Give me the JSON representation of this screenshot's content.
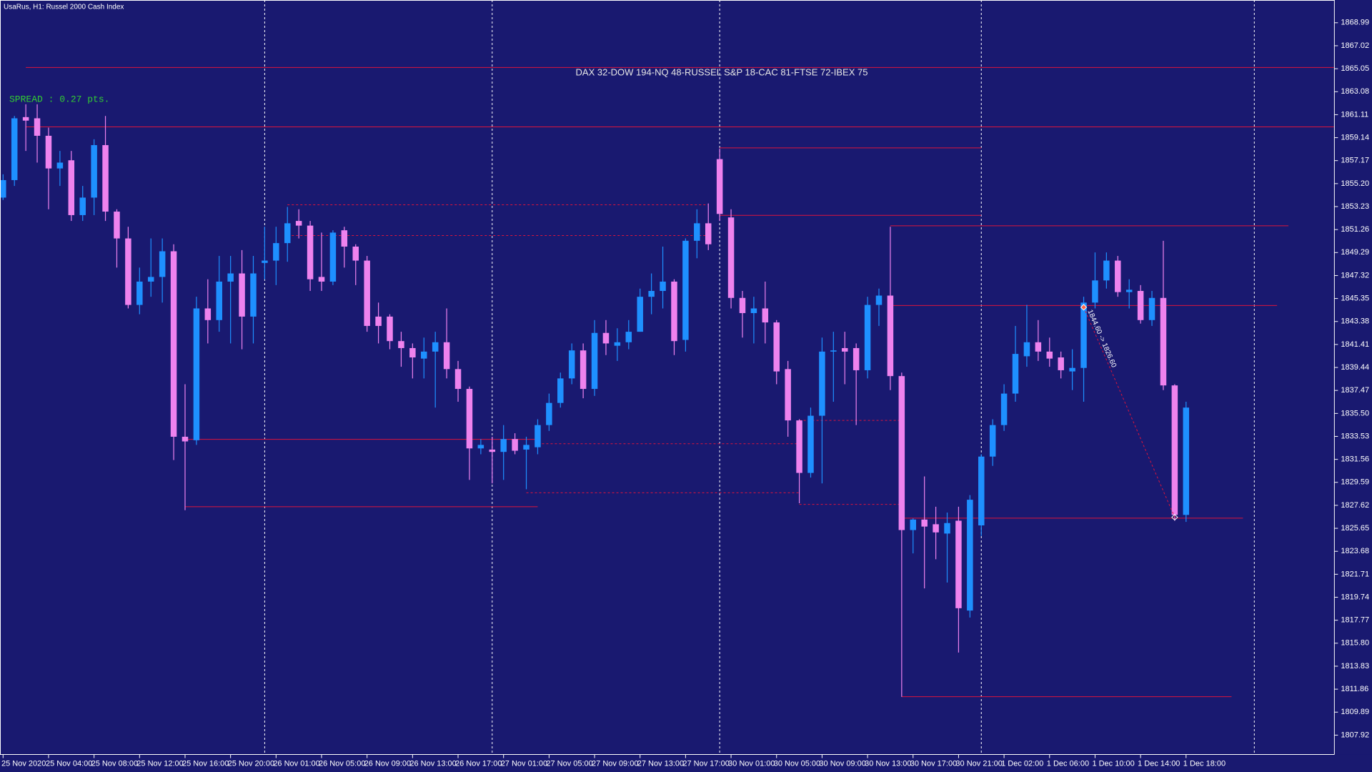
{
  "chart_data": {
    "type": "candlestick",
    "title": "UsaRus, H1:  Russel 2000 Cash Index",
    "header": "DAX 32-DOW 194-NQ 48-RUSSEL S&P 18-CAC 81-FTSE 72-IBEX 75",
    "spread": "SPREAD : 0.27 pts.",
    "up_color": "#1e90ff",
    "down_color": "#ee82ee",
    "level_color": "#dc143c",
    "background": "#191970",
    "categories": [
      "25 Nov 2020",
      null,
      null,
      null,
      "25 Nov 04:00",
      null,
      null,
      null,
      "25 Nov 08:00",
      null,
      null,
      null,
      "25 Nov 12:00",
      null,
      null,
      null,
      "25 Nov 16:00",
      null,
      null,
      null,
      "25 Nov 20:00",
      null,
      null,
      null,
      "26 Nov 01:00",
      null,
      null,
      null,
      "26 Nov 05:00",
      null,
      null,
      null,
      "26 Nov 09:00",
      null,
      null,
      null,
      "26 Nov 13:00",
      null,
      null,
      null,
      "26 Nov 17:00",
      null,
      null,
      null,
      "27 Nov 01:00",
      null,
      null,
      null,
      "27 Nov 05:00",
      null,
      null,
      null,
      "27 Nov 09:00",
      null,
      null,
      null,
      "27 Nov 13:00",
      null,
      null,
      null,
      "27 Nov 17:00",
      null,
      null,
      null,
      "30 Nov 01:00",
      null,
      null,
      null,
      "30 Nov 05:00",
      null,
      null,
      null,
      "30 Nov 09:00",
      null,
      null,
      null,
      "30 Nov 13:00",
      null,
      null,
      null,
      "30 Nov 17:00",
      null,
      null,
      null,
      "30 Nov 21:00",
      null,
      null,
      null,
      "1 Dec 02:00",
      null,
      null,
      null,
      "1 Dec 06:00",
      null,
      null,
      null,
      "1 Dec 10:00",
      null,
      null,
      null,
      "1 Dec 14:00",
      null,
      null,
      null,
      "1 Dec 18:00"
    ],
    "open": [
      1854.0,
      1855.5,
      1860.9,
      1860.8,
      1859.3,
      1856.5,
      1857.2,
      1852.5,
      1854.0,
      1858.5,
      1852.8,
      1850.5,
      1844.8,
      1846.8,
      1847.2,
      1849.4,
      1833.5,
      1833.2,
      1844.5,
      1843.5,
      1846.8,
      1847.5,
      1843.8,
      1848.4,
      1848.6,
      1850.1,
      1852.0,
      1851.6,
      1847.2,
      1846.8,
      1851.2,
      1849.8,
      1848.6,
      1843.8,
      1843.8,
      1841.7,
      1841.1,
      1840.2,
      1840.8,
      1841.6,
      1839.3,
      1837.6,
      1832.5,
      1832.4,
      1832.2,
      1833.3,
      1832.4,
      1832.6,
      1834.5,
      1836.4,
      1838.5,
      1840.9,
      1837.6,
      1842.4,
      1841.3,
      1841.6,
      1842.5,
      1845.5,
      1846.0,
      1846.8,
      1841.8,
      1850.3,
      1851.8,
      1857.3,
      1852.3,
      1845.4,
      1844.1,
      1844.5,
      1843.3,
      1839.3,
      1834.9,
      1830.4,
      1835.3,
      1840.8,
      1841.1,
      1841.1,
      1839.2,
      1844.8,
      1845.6,
      1838.7,
      1825.5,
      1826.4,
      1826.0,
      1825.2,
      1826.3,
      1818.6,
      1825.9,
      1831.8,
      1834.5,
      1837.2,
      1840.4,
      1841.6,
      1840.8,
      1840.3,
      1839.1,
      1839.4,
      1845.0,
      1846.9,
      1848.6,
      1845.9,
      1846.0,
      1843.5,
      1845.4,
      1837.9,
      1826.8
    ],
    "high": [
      1856,
      1861,
      1862,
      1862,
      1860,
      1858,
      1858,
      1855,
      1859,
      1861,
      1853,
      1851.5,
      1848,
      1850.5,
      1850.5,
      1850,
      1838,
      1845.5,
      1847,
      1849,
      1849,
      1849.5,
      1849,
      1851.5,
      1851.5,
      1853.2,
      1853,
      1852,
      1851,
      1851.2,
      1851.5,
      1850,
      1849,
      1845,
      1844,
      1842.5,
      1841.5,
      1842,
      1842.5,
      1844.5,
      1840,
      1837.8,
      1833.3,
      1833.5,
      1834.5,
      1833.8,
      1833.5,
      1835,
      1837.2,
      1839,
      1841.5,
      1841.5,
      1843.5,
      1843.5,
      1842.8,
      1843.5,
      1846.2,
      1847.5,
      1849.8,
      1847,
      1850.5,
      1853,
      1853.5,
      1858.2,
      1853,
      1846,
      1845.5,
      1846.8,
      1843.5,
      1840,
      1835,
      1836,
      1842,
      1842.5,
      1842.5,
      1841.5,
      1845.5,
      1846.2,
      1851.5,
      1839,
      1826.5,
      1830.1,
      1827.5,
      1827,
      1827.5,
      1828.5,
      1832,
      1835,
      1838,
      1843,
      1844.8,
      1843.5,
      1842,
      1840.8,
      1841,
      1845.5,
      1849.3,
      1849.3,
      1849,
      1847,
      1846.5,
      1846,
      1850.3,
      1838,
      1836.5
    ],
    "low": [
      1853.8,
      1855,
      1858,
      1857,
      1853,
      1855,
      1852,
      1852,
      1852.5,
      1852,
      1848,
      1844.5,
      1844,
      1845.5,
      1845,
      1831.5,
      1827.2,
      1832.8,
      1841.5,
      1842.5,
      1841.5,
      1841,
      1841.5,
      1847,
      1846.5,
      1848.5,
      1850.5,
      1846,
      1846,
      1846.5,
      1848,
      1846.5,
      1842.5,
      1841.5,
      1841,
      1839.5,
      1838.5,
      1838.5,
      1836,
      1838.5,
      1836.5,
      1829.8,
      1832,
      1829.5,
      1829.8,
      1832,
      1829,
      1832,
      1834,
      1836,
      1838,
      1836.8,
      1837,
      1840.5,
      1840,
      1841,
      1842.5,
      1844,
      1844.5,
      1840.5,
      1840.8,
      1848.8,
      1849.5,
      1852,
      1844.5,
      1842,
      1841.5,
      1841.5,
      1838,
      1833.5,
      1827.8,
      1830,
      1829.5,
      1836.5,
      1838,
      1834.5,
      1838.5,
      1843,
      1837.5,
      1811.2,
      1823.5,
      1820.5,
      1823,
      1821,
      1815,
      1818,
      1825,
      1831,
      1834,
      1836.5,
      1839.5,
      1840,
      1839.5,
      1838.5,
      1837.5,
      1836.5,
      1844.5,
      1846.2,
      1845.5,
      1844.5,
      1843.2,
      1843,
      1837.5,
      1826.3,
      1826.2
    ],
    "close": [
      1855.5,
      1860.8,
      1860.6,
      1859.3,
      1856.5,
      1857.0,
      1852.5,
      1854.0,
      1858.5,
      1852.8,
      1850.5,
      1844.8,
      1846.8,
      1847.2,
      1849.4,
      1833.5,
      1833.1,
      1844.5,
      1843.5,
      1846.8,
      1847.5,
      1843.8,
      1847.5,
      1848.6,
      1850.1,
      1851.8,
      1851.6,
      1847.0,
      1846.8,
      1851.0,
      1849.8,
      1848.6,
      1843.0,
      1843.0,
      1841.7,
      1841.1,
      1840.3,
      1840.8,
      1841.6,
      1839.3,
      1837.6,
      1832.5,
      1832.8,
      1832.2,
      1833.3,
      1832.3,
      1832.8,
      1834.5,
      1836.4,
      1838.5,
      1840.9,
      1837.6,
      1842.4,
      1841.5,
      1841.6,
      1842.5,
      1845.5,
      1846.0,
      1846.8,
      1841.7,
      1850.3,
      1851.8,
      1850.0,
      1852.6,
      1845.4,
      1844.1,
      1844.5,
      1843.3,
      1839.1,
      1834.9,
      1830.4,
      1835.3,
      1840.8,
      1840.9,
      1840.8,
      1839.2,
      1844.8,
      1845.6,
      1838.7,
      1825.5,
      1826.4,
      1825.8,
      1825.3,
      1826.1,
      1818.8,
      1828.1,
      1831.8,
      1834.5,
      1837.2,
      1840.6,
      1841.6,
      1840.8,
      1840.2,
      1839.2,
      1839.4,
      1845.0,
      1846.9,
      1848.6,
      1845.9,
      1846.1,
      1843.5,
      1845.4,
      1837.9,
      1826.8,
      1836.0
    ],
    "ylim": [
      1806.26,
      1870.94
    ],
    "yticks": [
      1868.99,
      1867.02,
      1865.05,
      1863.08,
      1861.11,
      1859.14,
      1857.17,
      {
        "value": 1855.2,
        "label": "1855.20"
      },
      1853.23,
      1851.26,
      1849.29,
      1847.32,
      1845.35,
      1843.38,
      1841.41,
      1839.44,
      1837.47,
      {
        "value": 1835.5,
        "label": "1835.50"
      },
      1833.53,
      1831.56,
      1829.59,
      1827.62,
      1825.65,
      1823.68,
      1821.71,
      1819.74,
      1817.77,
      {
        "value": 1815.8,
        "label": "1815.80"
      },
      1813.83,
      1811.86,
      1809.89,
      1807.92
    ],
    "levels": [
      {
        "price": 1865.16,
        "from": 2,
        "to": 117,
        "style": "solid"
      },
      {
        "price": 1860.06,
        "from": 2,
        "to": 117,
        "style": "solid"
      },
      {
        "price": 1858.26,
        "from": 63,
        "to": 86,
        "style": "solid"
      },
      {
        "price": 1852.48,
        "from": 63,
        "to": 86,
        "style": "solid"
      },
      {
        "price": 1851.58,
        "from": 78,
        "to": 113,
        "style": "solid"
      },
      {
        "price": 1844.75,
        "from": 78,
        "to": 112,
        "style": "solid"
      },
      {
        "price": 1833.28,
        "from": 16,
        "to": 47,
        "style": "solid"
      },
      {
        "price": 1827.5,
        "from": 16,
        "to": 47,
        "style": "solid"
      },
      {
        "price": 1826.52,
        "from": 79,
        "to": 109,
        "style": "solid"
      },
      {
        "price": 1811.22,
        "from": 79,
        "to": 108,
        "style": "solid"
      },
      {
        "price": 1853.38,
        "from": 25,
        "to": 62,
        "style": "dashed"
      },
      {
        "price": 1850.75,
        "from": 25,
        "to": 62,
        "style": "dashed"
      },
      {
        "price": 1832.9,
        "from": 47,
        "to": 70,
        "style": "dashed"
      },
      {
        "price": 1828.7,
        "from": 46,
        "to": 70,
        "style": "dashed"
      },
      {
        "price": 1834.9,
        "from": 70,
        "to": 79,
        "style": "dashed"
      },
      {
        "price": 1827.7,
        "from": 70,
        "to": 79,
        "style": "dashed"
      }
    ],
    "separators": [
      23,
      43,
      63,
      86,
      110
    ],
    "trendline": {
      "from": 95,
      "from_price": 1844.6,
      "to": 103,
      "to_price": 1826.6,
      "label": "1844.60 -> 1826.60"
    }
  }
}
